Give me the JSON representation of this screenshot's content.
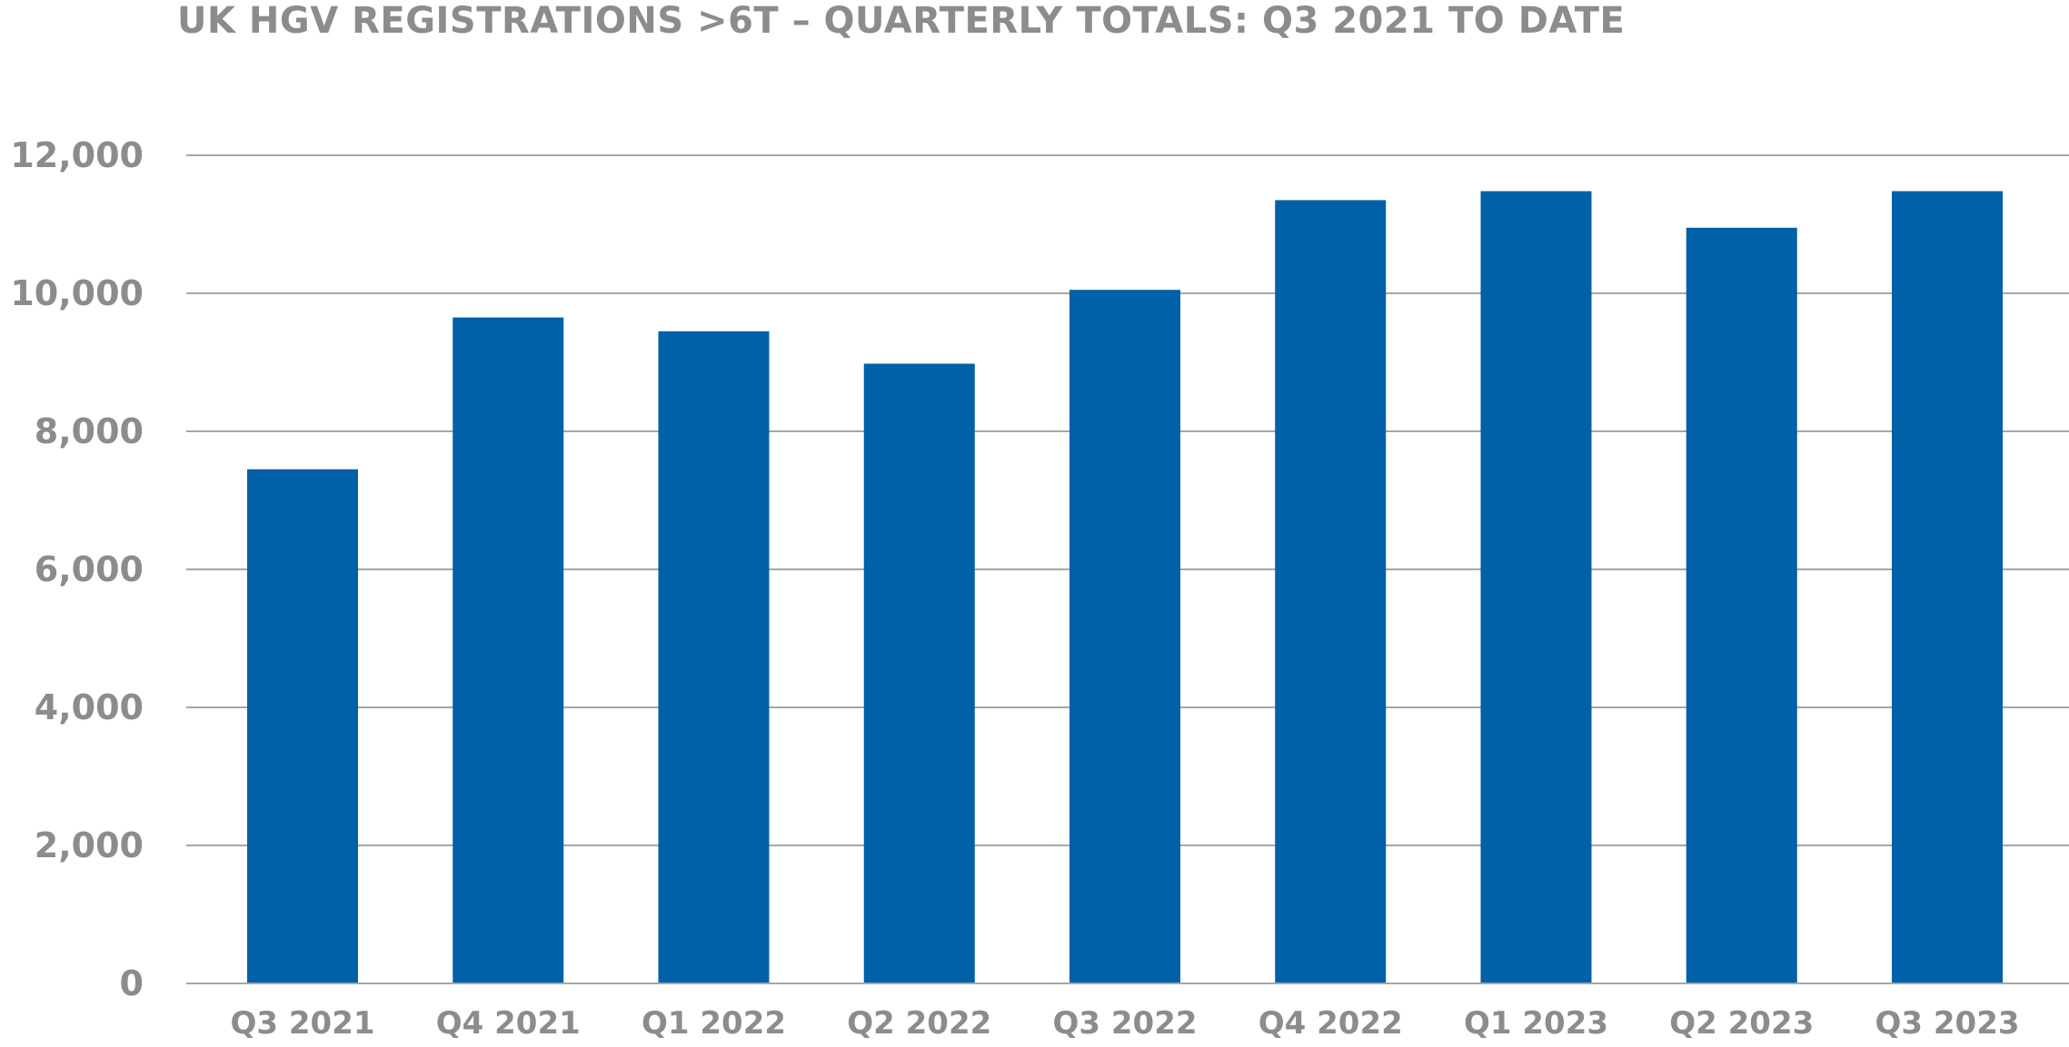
{
  "chart_data": {
    "type": "bar",
    "title": "UK HGV REGISTRATIONS >6T – QUARTERLY TOTALS: Q3 2021 TO DATE",
    "categories": [
      "Q3 2021",
      "Q4 2021",
      "Q1 2022",
      "Q2 2022",
      "Q3 2022",
      "Q4 2022",
      "Q1 2023",
      "Q2 2023",
      "Q3 2023"
    ],
    "values": [
      7450,
      9650,
      9450,
      8980,
      10050,
      11350,
      11480,
      10950,
      11480
    ],
    "ylim": [
      0,
      12000
    ],
    "yticks": [
      0,
      2000,
      4000,
      6000,
      8000,
      10000,
      12000
    ],
    "ytick_labels": [
      "0",
      "2,000",
      "4,000",
      "6,000",
      "8,000",
      "10,000",
      "12,000"
    ],
    "xlabel": "",
    "ylabel": "",
    "grid": true,
    "legend": "none",
    "bar_color": "#0060a8"
  }
}
